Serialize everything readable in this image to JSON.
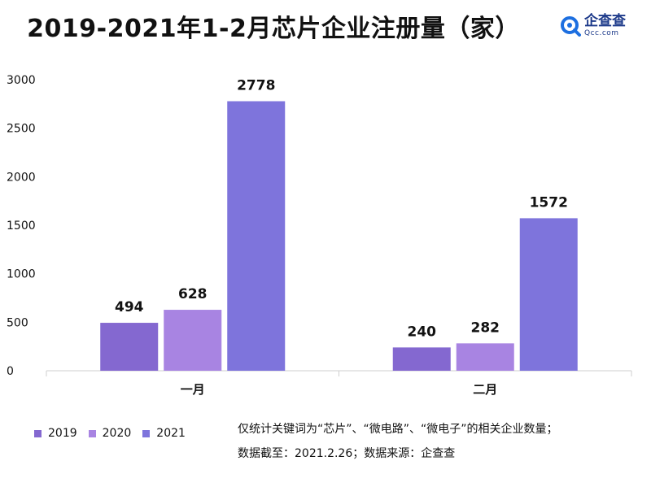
{
  "title": "2019-2021年1-2月芯片企业注册量（家）",
  "logo": {
    "name": "企查查",
    "url": "Qcc.com",
    "icon": "qcc-logo-icon"
  },
  "colors": {
    "2019": "#8468d0",
    "2020": "#a884e2",
    "2021": "#7e74dc"
  },
  "chart_data": {
    "type": "bar",
    "title": "2019-2021年1-2月芯片企业注册量（家）",
    "categories": [
      "一月",
      "二月"
    ],
    "series": [
      {
        "name": "2019",
        "values": [
          494,
          240
        ]
      },
      {
        "name": "2020",
        "values": [
          628,
          282
        ]
      },
      {
        "name": "2021",
        "values": [
          2778,
          1572
        ]
      }
    ],
    "yticks": [
      0,
      500,
      1000,
      1500,
      2000,
      2500,
      3000
    ],
    "ylim": [
      0,
      3000
    ],
    "xlabel": "",
    "ylabel": "",
    "grid": false,
    "legend": "bottom-left"
  },
  "notes": {
    "line1": "仅统计关键词为“芯片”、“微电路”、“微电子”的相关企业数量；",
    "line2": "数据截至：2021.2.26；数据来源：企查查"
  }
}
